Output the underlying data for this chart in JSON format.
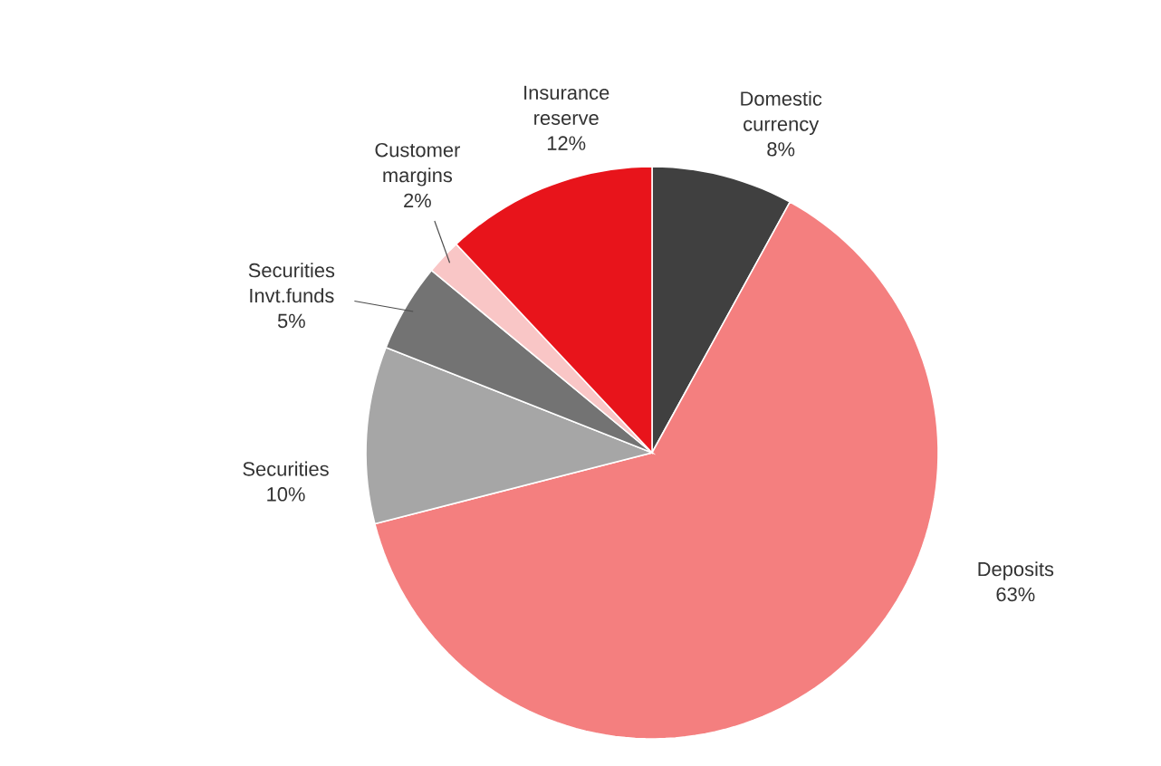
{
  "chart_data": {
    "type": "pie",
    "categories": [
      "Domestic currency",
      "Deposits",
      "Securities",
      "Securities Invt.funds",
      "Customer margins",
      "Insurance reserve"
    ],
    "values": [
      8,
      63,
      10,
      5,
      2,
      12
    ],
    "colors": [
      "#404040",
      "#f47f7f",
      "#a6a6a6",
      "#737373",
      "#f9c6c6",
      "#e8141b"
    ],
    "value_labels": [
      "8%",
      "63%",
      "10%",
      "5%",
      "2%",
      "12%"
    ]
  }
}
